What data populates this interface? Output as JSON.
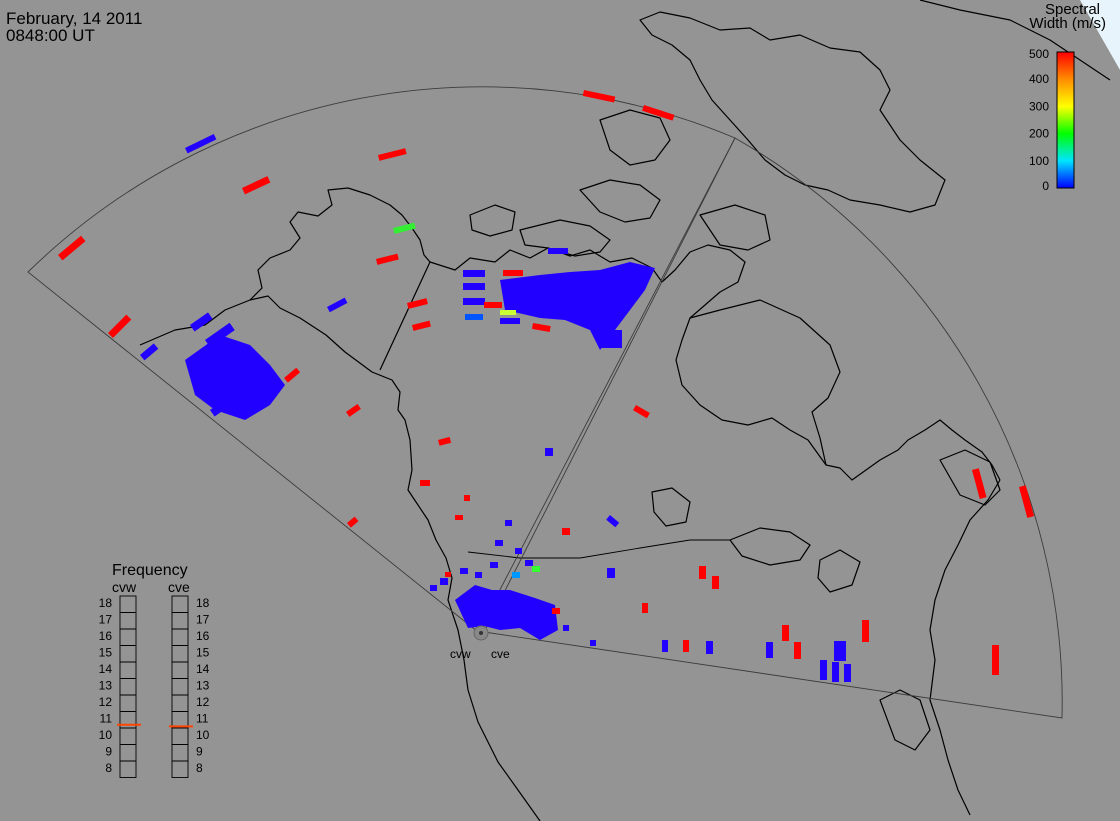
{
  "header": {
    "date": "February, 14 2011",
    "time": "0848:00 UT"
  },
  "colorbar": {
    "title_line1": "Spectral",
    "title_line2": "Width (m/s)",
    "tick_labels": [
      "500",
      "400",
      "300",
      "200",
      "100",
      "0"
    ],
    "stops": [
      "#ff0000",
      "#ff8c00",
      "#ffff00",
      "#00ff00",
      "#00e5ff",
      "#0000ff"
    ]
  },
  "frequency_panel": {
    "title": "Frequency",
    "left_label": "cvw",
    "right_label": "cve",
    "tick_labels": [
      "18",
      "17",
      "16",
      "15",
      "14",
      "13",
      "12",
      "11",
      "10",
      "9",
      "8"
    ],
    "cvw_value_mhz": 10.7,
    "cve_value_mhz": 10.6,
    "marker_color": "#ff4500"
  },
  "radars": [
    {
      "name": "cvw"
    },
    {
      "name": "cve"
    }
  ],
  "colors": {
    "background": "#949494",
    "low_width": "#2200ff",
    "high_width": "#ff0000",
    "mid_width": "#00ff00"
  }
}
